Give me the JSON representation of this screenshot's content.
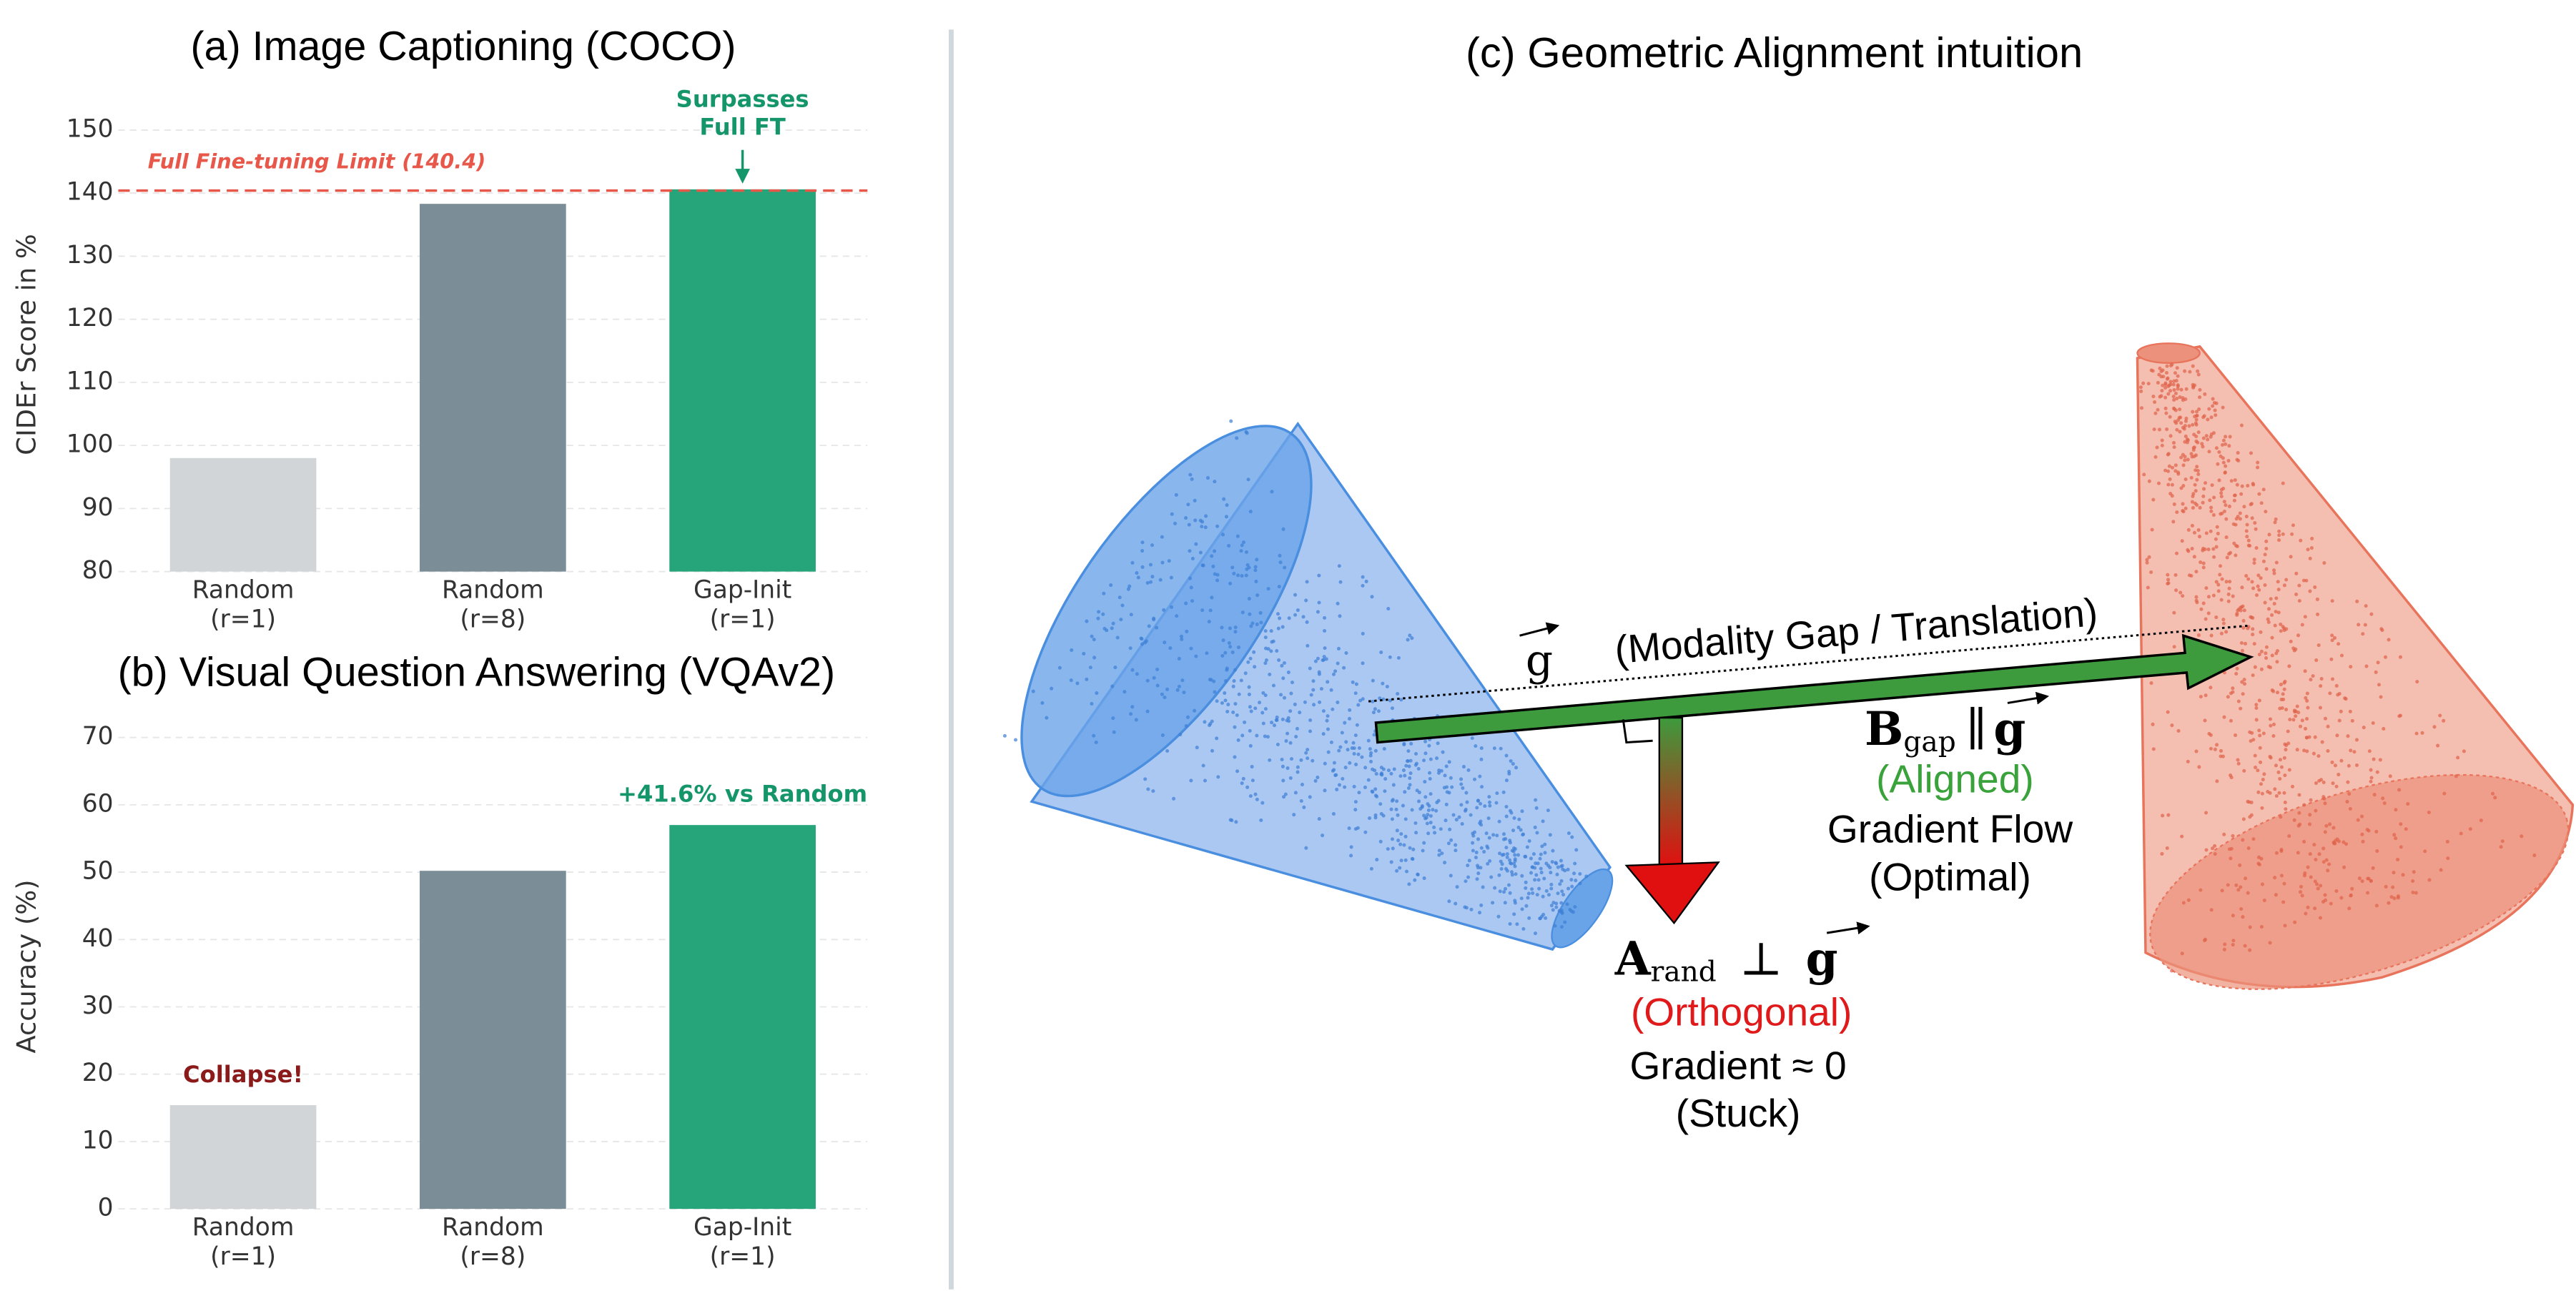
{
  "chart_data": [
    {
      "type": "bar",
      "title": "(a) Image Captioning (COCO)",
      "ylabel": "CIDEr Score in %",
      "categories": [
        "Random\n(r=1)",
        "Random\n(r=8)",
        "Gap-Init\n(r=1)"
      ],
      "values": [
        98,
        138.3,
        140.6
      ],
      "colors": [
        "#d1d5d8",
        "#7b8d96",
        "#27a57a"
      ],
      "ylim": [
        80,
        152
      ],
      "yticks": [
        80,
        90,
        100,
        110,
        120,
        130,
        140,
        150
      ],
      "grid": true,
      "reference_line": {
        "value": 140.4,
        "label": "Full Fine-tuning Limit (140.4)",
        "color": "#e8584a"
      },
      "bar_annotations": [
        null,
        null,
        "Surpasses\nFull FT"
      ],
      "bar_annotation_colors": [
        null,
        null,
        "#15966a"
      ]
    },
    {
      "type": "bar",
      "title": "(b) Visual Question Answering (VQAv2)",
      "ylabel": "Accuracy (%)",
      "categories": [
        "Random\n(r=1)",
        "Random\n(r=8)",
        "Gap-Init\n(r=1)"
      ],
      "values": [
        15.4,
        50.2,
        57.0
      ],
      "colors": [
        "#d1d5d8",
        "#7b8d96",
        "#27a57a"
      ],
      "ylim": [
        0,
        72
      ],
      "yticks": [
        0,
        10,
        20,
        30,
        40,
        50,
        60,
        70
      ],
      "grid": true,
      "bar_annotations": [
        "Collapse!",
        null,
        "+41.6% vs Random"
      ],
      "bar_annotation_colors": [
        "#8b1a1a",
        null,
        "#15966a"
      ]
    }
  ],
  "diagram": {
    "title": "(c) Geometric Alignment intuition",
    "vector_symbol": "g",
    "gap_label": "(Modality Gap / Translation)",
    "b_symbol": "B",
    "b_subscript": "gap",
    "parallel": "∥",
    "aligned": "(Aligned)",
    "flow": "Gradient Flow\n(Optimal)",
    "a_symbol": "A",
    "a_subscript": "rand",
    "perp": "⊥",
    "orthogonal": "(Orthogonal)",
    "stuck": "Gradient ≈ 0\n(Stuck)"
  }
}
